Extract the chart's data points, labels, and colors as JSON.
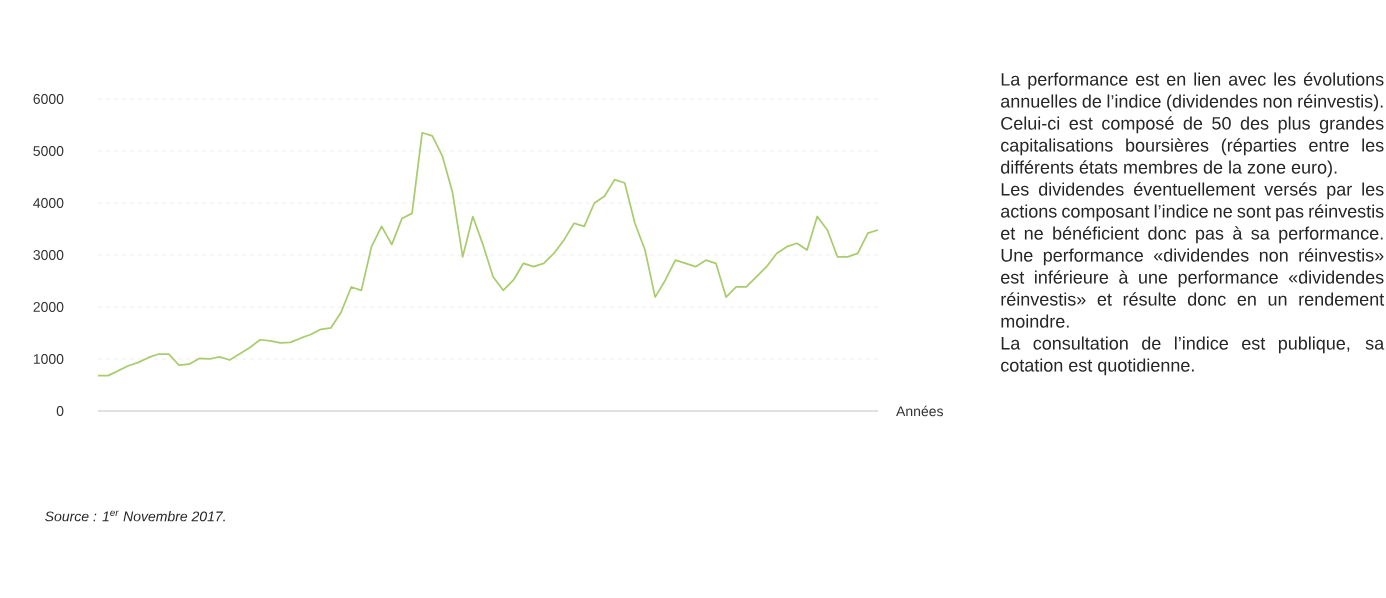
{
  "chart_data": {
    "type": "line",
    "xlabel": "Années",
    "categories": [
      null,
      null,
      null,
      null,
      null,
      null,
      null,
      null,
      null,
      null,
      null,
      null,
      null,
      null,
      null,
      null,
      null,
      null,
      null,
      null,
      null,
      null,
      null,
      null,
      null,
      null,
      null,
      null,
      null,
      null,
      null,
      null,
      null,
      null,
      null,
      null,
      null,
      null,
      null,
      null,
      null,
      null,
      null,
      null,
      null,
      null,
      null,
      null,
      null,
      null,
      null,
      null,
      null,
      null,
      null,
      null,
      null,
      null,
      null,
      null,
      null,
      null,
      null,
      null,
      null,
      null,
      null,
      null,
      null,
      null,
      null,
      null,
      null,
      null,
      null,
      null,
      null,
      null
    ],
    "series": [
      {
        "color": "#a9cc6e",
        "values": [
          680,
          680,
          775,
          870,
          935,
          1030,
          1095,
          1095,
          880,
          900,
          1010,
          1000,
          1040,
          980,
          1100,
          1220,
          1370,
          1350,
          1310,
          1320,
          1400,
          1470,
          1570,
          1600,
          1900,
          2385,
          2320,
          3160,
          3550,
          3200,
          3700,
          3800,
          5350,
          5290,
          4900,
          4200,
          2965,
          3740,
          3200,
          2580,
          2320,
          2515,
          2840,
          2775,
          2840,
          3030,
          3290,
          3610,
          3550,
          4000,
          4130,
          4450,
          4385,
          3610,
          3095,
          2190,
          2515,
          2900,
          2840,
          2775,
          2900,
          2840,
          2190,
          2385,
          2385,
          2580,
          2775,
          3030,
          3160,
          3225,
          3095,
          3740,
          3480,
          2965,
          2965,
          3030,
          3420,
          3480
        ]
      }
    ],
    "ylim": [
      0,
      6000
    ],
    "yticks": [
      0,
      1000,
      2000,
      3000,
      4000,
      5000,
      6000
    ],
    "grid": "y",
    "line_style": "solid",
    "marker": "none",
    "annotations": [
      "*Source : 1$^{er}$ Novembre 2017.*",
      "La performance est en lien avec les évolutions annuelles de l’indice (dividendes non réinvestis).",
      "Celui-ci est composé de 50 des plus grandes capitalisations boursières (réparties entre les différents états membres de la zone euro).",
      "Les dividendes éventuellement versés par les actions composant l’indice ne sont pas réinvestis et ne bénéficient donc pas à sa performance. Une performance «dividendes non réinvestis» est inférieure à une performance «dividendes réinvestis» et résulte donc en un rendement moindre.",
      "La consultation de l’indice est publique, sa cotation est quotidienne."
    ]
  }
}
